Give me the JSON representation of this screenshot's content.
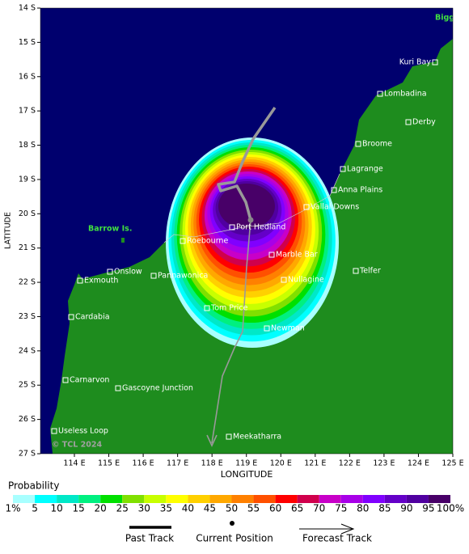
{
  "map": {
    "lat_labels": [
      "14 S",
      "15 S",
      "16 S",
      "17 S",
      "18 S",
      "19 S",
      "20 S",
      "21 S",
      "22 S",
      "23 S",
      "24 S",
      "25 S",
      "26 S",
      "27 S"
    ],
    "lon_labels": [
      "114 E",
      "115 E",
      "116 E",
      "117 E",
      "118 E",
      "119 E",
      "120 E",
      "121 E",
      "122 E",
      "123 E",
      "124 E",
      "125 E"
    ],
    "y_axis_title": "LATITUDE",
    "x_axis_title": "LONGITUDE",
    "places": [
      "Kuri Bay",
      "Lombadina",
      "Derby",
      "Broome",
      "Lagrange",
      "Anna Plains",
      "Vallal Downs",
      "Port Hedland",
      "Roebourne",
      "Marble Bar",
      "Onslow",
      "Exmouth",
      "Pannawonica",
      "Nullagine",
      "Telfer",
      "Cardabia",
      "Tom Price",
      "Newman",
      "Carnarvon",
      "Gascoyne Junction",
      "Useless Loop",
      "Meekatharra"
    ],
    "islands": [
      "Barrow Is.",
      "Bigg"
    ],
    "copyright": "© TCL 2024"
  },
  "legend": {
    "title": "Probability",
    "labels": [
      "1%",
      "5",
      "10",
      "15",
      "20",
      "25",
      "30",
      "35",
      "40",
      "45",
      "50",
      "55",
      "60",
      "65",
      "70",
      "75",
      "80",
      "85",
      "90",
      "95",
      "100%"
    ],
    "colors": [
      "#a8ffff",
      "#00ffff",
      "#00e8c8",
      "#00f080",
      "#00e000",
      "#80e000",
      "#c8ff00",
      "#ffff00",
      "#ffd000",
      "#ffa800",
      "#ff8000",
      "#ff5000",
      "#ff0000",
      "#d0004c",
      "#c800c8",
      "#a800e8",
      "#8000ff",
      "#6400c8",
      "#5000a0",
      "#480068"
    ]
  },
  "key": {
    "past_track": "Past Track",
    "current_position": "Current Position",
    "forecast_track": "Forecast Track"
  }
}
